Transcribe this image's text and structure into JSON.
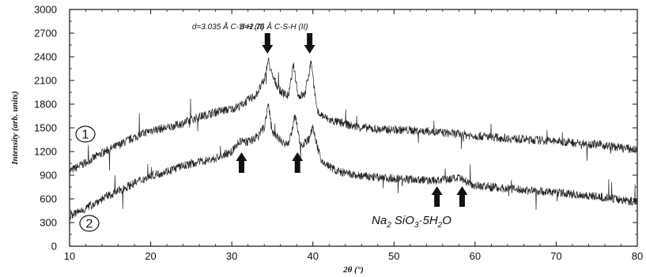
{
  "chart_data": {
    "type": "line",
    "xlabel": "2θ (°)",
    "ylabel": "Intensity (arb. units)",
    "xlim": [
      10,
      80
    ],
    "ylim": [
      0,
      3000
    ],
    "x_ticks": [
      10,
      20,
      30,
      40,
      50,
      60,
      70,
      80
    ],
    "y_ticks": [
      0,
      300,
      600,
      900,
      1200,
      1500,
      1800,
      2100,
      2400,
      2700,
      3000
    ],
    "grid": false,
    "series": [
      {
        "name": "1",
        "x": [
          10,
          12,
          14,
          16,
          18,
          20,
          22,
          24,
          26,
          28,
          30,
          31,
          32,
          33,
          34,
          34.5,
          35,
          36,
          37,
          37.6,
          38.2,
          39,
          39.8,
          40.5,
          42,
          45,
          48,
          52,
          56,
          60,
          65,
          70,
          75,
          80
        ],
        "y": [
          950,
          1060,
          1180,
          1280,
          1380,
          1470,
          1500,
          1560,
          1640,
          1700,
          1740,
          1780,
          1850,
          1920,
          2100,
          2360,
          2150,
          1960,
          1900,
          2300,
          1900,
          1920,
          2350,
          1700,
          1600,
          1520,
          1480,
          1470,
          1440,
          1400,
          1360,
          1330,
          1290,
          1220
        ]
      },
      {
        "name": "2",
        "x": [
          10,
          12,
          14,
          16,
          18,
          20,
          22,
          24,
          26,
          28,
          30,
          31,
          32,
          33,
          34,
          34.5,
          35,
          36,
          37,
          37.8,
          38.5,
          39.5,
          40,
          41,
          43,
          45,
          48,
          52,
          55,
          58,
          60,
          65,
          70,
          75,
          80
        ],
        "y": [
          380,
          480,
          600,
          700,
          800,
          890,
          950,
          1020,
          1070,
          1110,
          1200,
          1330,
          1320,
          1380,
          1500,
          1800,
          1450,
          1340,
          1280,
          1650,
          1270,
          1360,
          1500,
          1080,
          950,
          900,
          870,
          850,
          830,
          860,
          770,
          720,
          680,
          630,
          560
        ]
      }
    ],
    "annotations": [
      {
        "text": "d=3.035 Å  C-S-H (II)",
        "x": 34.4,
        "arrow": "down"
      },
      {
        "text": "d=2.76 Å  C-S-H (II)",
        "x": 39.6,
        "arrow": "down"
      }
    ],
    "peak_arrows_up": [
      31.2,
      38.1,
      55.3,
      58.4
    ],
    "mineral_label": {
      "text": "Na",
      "sub1": "2",
      "text2": " SiO",
      "sub2": "3",
      "text3": "·5H",
      "sub3": "2",
      "text4": "O"
    },
    "series_markers": [
      "1",
      "2"
    ]
  }
}
